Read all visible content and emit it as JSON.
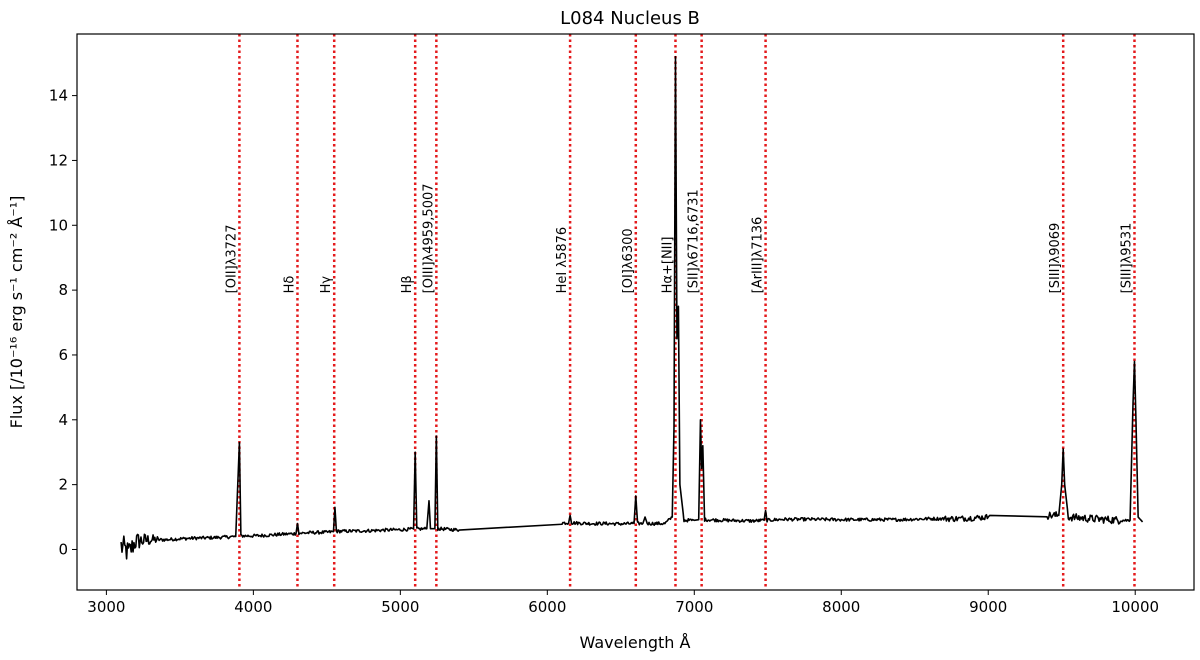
{
  "chart_data": {
    "type": "line",
    "title": "L084 Nucleus B",
    "xlabel": "Wavelength Å",
    "ylabel": "Flux  [/10⁻¹⁶ erg s⁻¹ cm⁻² Å⁻¹]",
    "xlim": [
      2800,
      10400
    ],
    "ylim": [
      -1.25,
      15.9
    ],
    "x_ticks": [
      3000,
      4000,
      5000,
      6000,
      7000,
      8000,
      9000,
      10000
    ],
    "y_ticks": [
      0,
      2,
      4,
      6,
      8,
      10,
      12,
      14
    ],
    "grid": false,
    "series": [
      {
        "line_color": "#000000",
        "points": [
          [
            3100,
            0.1
          ],
          [
            3150,
            -0.1
          ],
          [
            3200,
            0.25
          ],
          [
            3300,
            0.3
          ],
          [
            3400,
            0.3
          ],
          [
            3500,
            0.33
          ],
          [
            3600,
            0.35
          ],
          [
            3700,
            0.36
          ],
          [
            3800,
            0.38
          ],
          [
            3880,
            0.4
          ],
          [
            3905,
            3.3
          ],
          [
            3915,
            0.42
          ],
          [
            4000,
            0.42
          ],
          [
            4100,
            0.44
          ],
          [
            4200,
            0.47
          ],
          [
            4290,
            0.49
          ],
          [
            4300,
            0.8
          ],
          [
            4310,
            0.5
          ],
          [
            4400,
            0.52
          ],
          [
            4500,
            0.53
          ],
          [
            4545,
            0.55
          ],
          [
            4555,
            1.3
          ],
          [
            4565,
            0.56
          ],
          [
            4700,
            0.57
          ],
          [
            4800,
            0.58
          ],
          [
            4900,
            0.6
          ],
          [
            5000,
            0.61
          ],
          [
            5090,
            0.63
          ],
          [
            5101,
            3.0
          ],
          [
            5112,
            0.63
          ],
          [
            5180,
            0.64
          ],
          [
            5195,
            1.5
          ],
          [
            5205,
            0.64
          ],
          [
            5235,
            0.64
          ],
          [
            5245,
            3.5
          ],
          [
            5255,
            0.64
          ],
          [
            5300,
            0.63
          ],
          [
            5400,
            0.6
          ],
          [
            6100,
            0.82
          ],
          [
            6145,
            0.82
          ],
          [
            6155,
            1.05
          ],
          [
            6165,
            0.82
          ],
          [
            6300,
            0.8
          ],
          [
            6400,
            0.8
          ],
          [
            6500,
            0.79
          ],
          [
            6590,
            0.8
          ],
          [
            6602,
            1.65
          ],
          [
            6614,
            0.8
          ],
          [
            6650,
            0.8
          ],
          [
            6665,
            1.0
          ],
          [
            6680,
            0.8
          ],
          [
            6800,
            0.8
          ],
          [
            6850,
            1.0
          ],
          [
            6862,
            3.8
          ],
          [
            6872,
            15.2
          ],
          [
            6882,
            6.5
          ],
          [
            6892,
            7.5
          ],
          [
            6902,
            2.0
          ],
          [
            6930,
            0.9
          ],
          [
            7000,
            0.9
          ],
          [
            7030,
            0.92
          ],
          [
            7042,
            4.0
          ],
          [
            7050,
            2.5
          ],
          [
            7058,
            3.2
          ],
          [
            7070,
            0.92
          ],
          [
            7200,
            0.9
          ],
          [
            7400,
            0.88
          ],
          [
            7475,
            0.9
          ],
          [
            7485,
            1.2
          ],
          [
            7495,
            0.9
          ],
          [
            7600,
            0.93
          ],
          [
            7800,
            0.93
          ],
          [
            8000,
            0.92
          ],
          [
            8200,
            0.92
          ],
          [
            8400,
            0.92
          ],
          [
            8600,
            0.95
          ],
          [
            8800,
            0.95
          ],
          [
            9000,
            1.0
          ],
          [
            9010,
            1.05
          ],
          [
            9400,
            1.05
          ],
          [
            9480,
            1.05
          ],
          [
            9500,
            2.0
          ],
          [
            9510,
            3.1
          ],
          [
            9520,
            2.0
          ],
          [
            9545,
            1.0
          ],
          [
            9700,
            0.95
          ],
          [
            9900,
            0.9
          ],
          [
            9965,
            0.9
          ],
          [
            9985,
            4.5
          ],
          [
            9995,
            5.8
          ],
          [
            10005,
            4.0
          ],
          [
            10020,
            1.0
          ],
          [
            10050,
            0.85
          ]
        ]
      }
    ],
    "emission_lines": [
      {
        "label": "[OII]λ3727",
        "x": 3905
      },
      {
        "label": "Hδ",
        "x": 4300
      },
      {
        "label": "Hγ",
        "x": 4550
      },
      {
        "label": "Hβ",
        "x": 5101
      },
      {
        "label": "[OIII]λ4959,5007",
        "x": 5245
      },
      {
        "label": "HeI λ5876",
        "x": 6155
      },
      {
        "label": "[OI]λ6300",
        "x": 6602
      },
      {
        "label": "Hα+[NII]",
        "x": 6872
      },
      {
        "label": "[SII]λ6716,6731",
        "x": 7050
      },
      {
        "label": "[ArIII]λ7136",
        "x": 7485
      },
      {
        "label": "[SIII]λ9069",
        "x": 9510
      },
      {
        "label": "[SIII]λ9531",
        "x": 9995
      }
    ],
    "marker_color": "#e41a1c"
  }
}
